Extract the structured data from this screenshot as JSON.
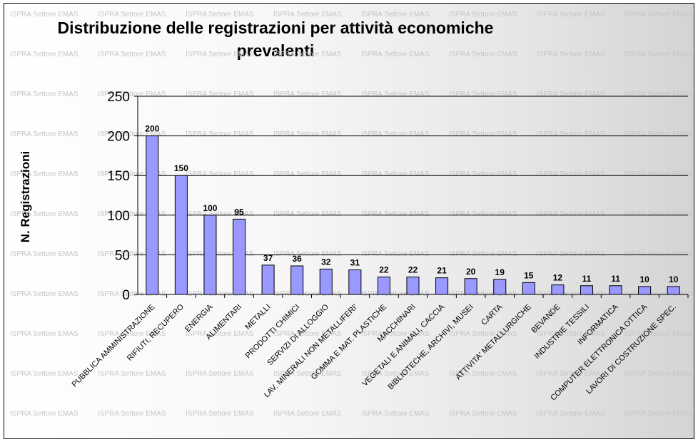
{
  "chart_data": {
    "type": "bar",
    "title": "Distribuzione delle registrazioni per attività economiche prevalenti",
    "xlabel": "",
    "ylabel": "N. Registrazioni",
    "ylim": [
      0,
      250
    ],
    "yticks": [
      0,
      50,
      100,
      150,
      200,
      250
    ],
    "grid": true,
    "legend": "none",
    "categories": [
      "PUBBLICA AMMINISTRAZIONE",
      "RIFIUTI, RECUPERO",
      "ENERGIA",
      "ALIMENTARI",
      "METALLI",
      "PRODOTTI CHIMICI",
      "SERVIZI DI ALLOGGIO",
      "LAV. MINERALI NON METALLIFERI'",
      "GOMMA E MAT. PLASTICHE",
      "MACCHINARI",
      "VEGETALI E ANIMALI, CACCIA",
      "BIBLIOTECHE, ARCHIVI, MUSEI",
      "CARTA",
      "ATTIVITA' METALLURGICHE",
      "BEVANDE",
      "INDUSTRIE TESSILI",
      "INFORMATICA",
      "COMPUTER ELETTRONICA OTTICA",
      "LAVORI DI COSTRUZIONE SPEC."
    ],
    "values": [
      200,
      150,
      100,
      95,
      37,
      36,
      32,
      31,
      22,
      22,
      21,
      20,
      19,
      15,
      12,
      11,
      11,
      10,
      10
    ],
    "bar_color": "#9999ff"
  },
  "watermark": "ISPRA Settore EMAS"
}
